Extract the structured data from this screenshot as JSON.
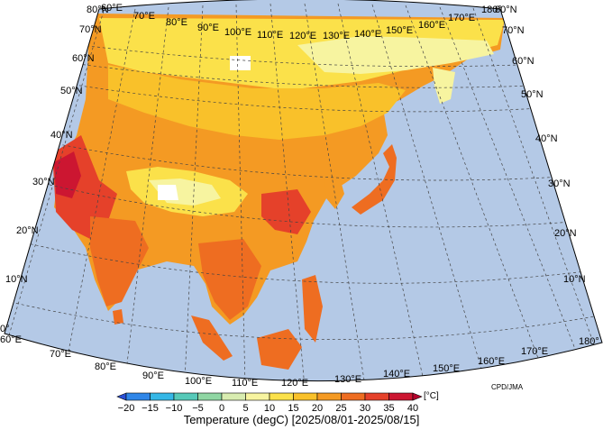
{
  "credit": "CPD/JMA",
  "caption": "Temperature (degC) [2025/08/01-2025/08/15]",
  "unit": "[°C]",
  "lon_labels_bottom": [
    "60°E",
    "70°E",
    "80°E",
    "90°E",
    "100°E",
    "110°E",
    "120°E",
    "130°E",
    "140°E",
    "150°E",
    "160°E",
    "170°E",
    "180°"
  ],
  "lon_labels_top": [
    "60°E",
    "70°E",
    "80°E",
    "90°E",
    "100°E",
    "110°E",
    "120°E",
    "130°E",
    "140°E",
    "150°E",
    "160°E",
    "170°E",
    "180°"
  ],
  "lat_labels_left": [
    "0°",
    "10°N",
    "20°N",
    "30°N",
    "40°N",
    "50°N",
    "60°N",
    "70°N",
    "80°N"
  ],
  "lat_labels_right": [
    "10°N",
    "20°N",
    "30°N",
    "40°N",
    "50°N",
    "60°N",
    "70°N",
    "80°N"
  ],
  "colorbar": {
    "labels": [
      "−20",
      "−15",
      "−10",
      "−5",
      "0",
      "5",
      "10",
      "15",
      "20",
      "25",
      "30",
      "35",
      "40"
    ],
    "colors": [
      "#2a4fd6",
      "#2f86e8",
      "#35b7e6",
      "#56c9b8",
      "#8fd6a3",
      "#d8ecb0",
      "#f7f4a0",
      "#fbe14a",
      "#f9c12a",
      "#f49a23",
      "#ee6d21",
      "#e5412a",
      "#cc1631",
      "#b5002c"
    ]
  },
  "colors": {
    "ocean": "#b4c9e6",
    "frame": "#000000",
    "gridline": "#444444"
  }
}
